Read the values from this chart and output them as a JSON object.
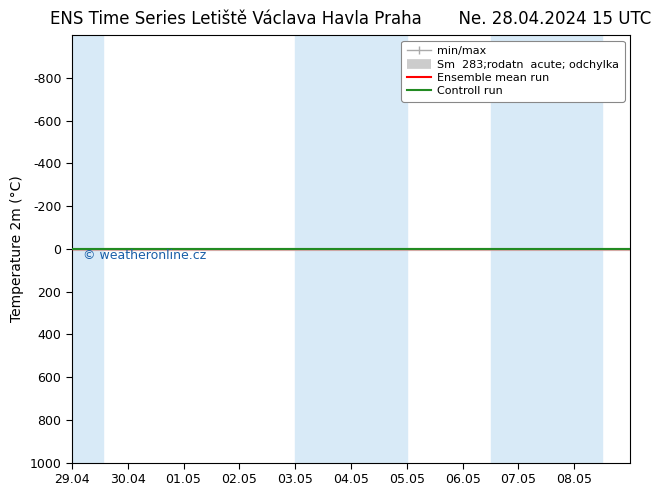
{
  "title_left": "ENS Time Series Letiště Václava Havla Praha",
  "title_right": "Ne. 28.04.2024 15 UTC",
  "ylabel": "Temperature 2m (°C)",
  "ylim_top": -1000,
  "ylim_bottom": 1000,
  "yticks": [
    -800,
    -600,
    -400,
    -200,
    0,
    200,
    400,
    600,
    800,
    1000
  ],
  "xlim_min": 0,
  "xlim_max": 10,
  "xtick_positions": [
    0,
    1,
    2,
    3,
    4,
    5,
    6,
    7,
    8,
    9
  ],
  "xtick_labels": [
    "29.04",
    "30.04",
    "01.05",
    "02.05",
    "03.05",
    "04.05",
    "05.05",
    "06.05",
    "07.05",
    "08.05"
  ],
  "background_color": "#ffffff",
  "plot_bg_color": "#ffffff",
  "shaded_bands": [
    [
      0.0,
      0.55
    ],
    [
      4.0,
      5.0
    ],
    [
      5.0,
      6.0
    ],
    [
      7.5,
      8.5
    ],
    [
      8.5,
      9.5
    ]
  ],
  "shaded_color": "#d8eaf7",
  "mean_run_color": "#ff0000",
  "control_run_color": "#228B22",
  "watermark": "© weatheronline.cz",
  "watermark_color": "#1a5fa8",
  "title_fontsize": 12,
  "axis_label_fontsize": 10,
  "tick_fontsize": 9,
  "legend_fontsize": 8
}
